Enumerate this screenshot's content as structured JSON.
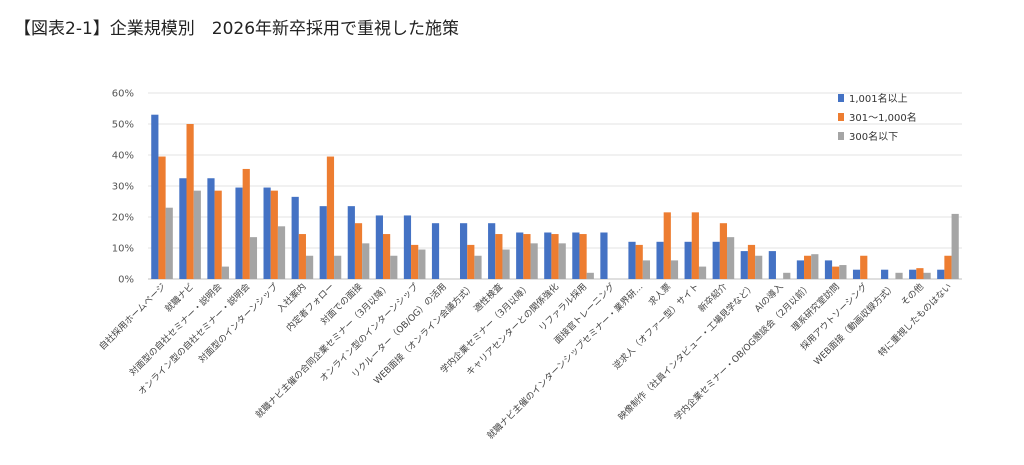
{
  "page_title": "【図表2-1】企業規模別　2026年新卒採用で重視した施策",
  "chart_data": {
    "type": "bar",
    "ylim": [
      0,
      60
    ],
    "y_ticks": [
      "0%",
      "10%",
      "20%",
      "30%",
      "40%",
      "50%",
      "60%"
    ],
    "grid": true,
    "legend_position": "top-right",
    "colors": [
      "#4472C4",
      "#ED7D31",
      "#A5A5A5"
    ],
    "categories": [
      "自社採用ホームページ",
      "就職ナビ",
      "対面型の自社セミナー・説明会",
      "オンライン型の自社セミナー・説明会",
      "対面型のインターンシップ",
      "入社案内",
      "内定者フォロー",
      "対面での面接",
      "就職ナビ主催の合同企業セミナー（3月以降）",
      "オンライン型のインターンシップ",
      "リクルーター（OB/OG）の活用",
      "WEB面接（オンライン会議方式）",
      "適性検査",
      "学内企業セミナー（3月以降）",
      "キャリアセンターとの関係強化",
      "リファラル採用",
      "面接官トレーニング",
      "就職ナビ主催のインターンシップセミナー・業界研…",
      "求人票",
      "逆求人（オファー型）サイト",
      "新卒紹介",
      "映像制作（社員インタビュー・工場見学など）",
      "AIの導入",
      "学内企業セミナー・OB/OG懇談会（2月以前）",
      "理系研究室訪問",
      "採用アウトソーシング",
      "WEB面接（動画収録方式）",
      "その他",
      "特に重視したものはない"
    ],
    "series": [
      {
        "name": "1,001名以上",
        "values": [
          53,
          32.5,
          32.5,
          29.5,
          29.5,
          26.5,
          23.5,
          23.5,
          20.5,
          20.5,
          18,
          18,
          18,
          15,
          15,
          15,
          15,
          12,
          12,
          12,
          12,
          9,
          9,
          6,
          6,
          3,
          3,
          3,
          3
        ]
      },
      {
        "name": "301～1,000名",
        "values": [
          39.5,
          50,
          28.5,
          35.5,
          28.5,
          14.5,
          39.5,
          18,
          14.5,
          11,
          0,
          11,
          14.5,
          14.5,
          14.5,
          14.5,
          0,
          11,
          21.5,
          21.5,
          18,
          11,
          0,
          7.5,
          4,
          7.5,
          0,
          3.5,
          7.5
        ]
      },
      {
        "name": "300名以下",
        "values": [
          23,
          28.5,
          4,
          13.5,
          17,
          7.5,
          7.5,
          11.5,
          7.5,
          9.5,
          0,
          7.5,
          9.5,
          11.5,
          11.5,
          2,
          0,
          6,
          6,
          4,
          13.5,
          7.5,
          2,
          8,
          4.5,
          0,
          2,
          2,
          21
        ]
      }
    ]
  }
}
